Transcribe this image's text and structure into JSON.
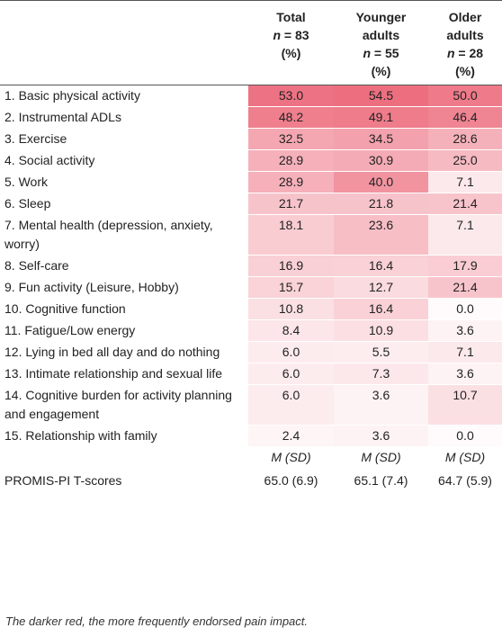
{
  "header": {
    "col0": "",
    "total": [
      "Total",
      "n = 83",
      "(%)"
    ],
    "younger": [
      "Younger",
      "adults",
      "n = 55",
      "(%)"
    ],
    "older": [
      "Older",
      "adults",
      "n = 28",
      "(%)"
    ]
  },
  "heat_color": "#e8495e",
  "rows": [
    {
      "label": "1. Basic physical activity",
      "total": "53.0",
      "younger": "54.5",
      "older": "50.0"
    },
    {
      "label": "2. Instrumental ADLs",
      "total": "48.2",
      "younger": "49.1",
      "older": "46.4"
    },
    {
      "label": "3. Exercise",
      "total": "32.5",
      "younger": "34.5",
      "older": "28.6"
    },
    {
      "label": "4. Social activity",
      "total": "28.9",
      "younger": "30.9",
      "older": "25.0"
    },
    {
      "label": "5. Work",
      "total": "28.9",
      "younger": "40.0",
      "older": "7.1"
    },
    {
      "label": "6. Sleep",
      "total": "21.7",
      "younger": "21.8",
      "older": "21.4"
    },
    {
      "label": "7. Mental health (depression, anxiety, worry)",
      "total": "18.1",
      "younger": "23.6",
      "older": "7.1"
    },
    {
      "label": "8. Self-care",
      "total": "16.9",
      "younger": "16.4",
      "older": "17.9"
    },
    {
      "label": "9. Fun activity (Leisure, Hobby)",
      "total": "15.7",
      "younger": "12.7",
      "older": "21.4"
    },
    {
      "label": "10. Cognitive function",
      "total": "10.8",
      "younger": "16.4",
      "older": "0.0"
    },
    {
      "label": "11. Fatigue/Low energy",
      "total": "8.4",
      "younger": "10.9",
      "older": "3.6"
    },
    {
      "label": "12. Lying in bed all day and do nothing",
      "total": "6.0",
      "younger": "5.5",
      "older": "7.1"
    },
    {
      "label": "13. Intimate relationship and sexual life",
      "total": "6.0",
      "younger": "7.3",
      "older": "3.6"
    },
    {
      "label": "14. Cognitive burden for activity planning and engagement",
      "total": "6.0",
      "younger": "3.6",
      "older": "10.7"
    },
    {
      "label": "15. Relationship with family",
      "total": "2.4",
      "younger": "3.6",
      "older": "0.0"
    }
  ],
  "msd": {
    "label": "",
    "total": "M (SD)",
    "younger": "M (SD)",
    "older": "M (SD)"
  },
  "promis": {
    "label": "PROMIS-PI T-scores",
    "total": "65.0 (6.9)",
    "younger": "65.1 (7.4)",
    "older": "64.7 (5.9)"
  },
  "note": "The darker red, the more frequently endorsed pain impact."
}
